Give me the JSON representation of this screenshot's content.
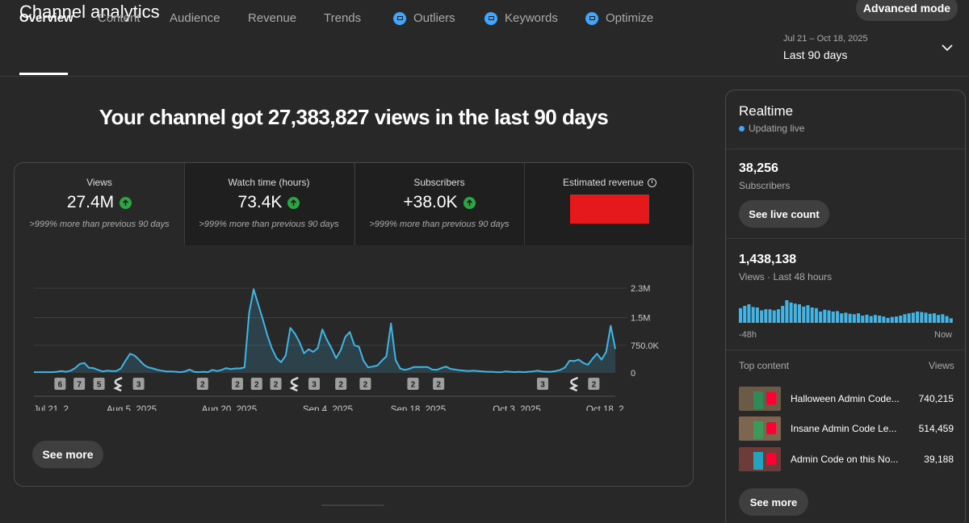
{
  "page": {
    "title": "Channel analytics",
    "advanced_mode": "Advanced mode",
    "headline": "Your channel got 27,383,827 views in the last 90 days"
  },
  "tabs": [
    {
      "label": "Overview",
      "active": true
    },
    {
      "label": "Content"
    },
    {
      "label": "Audience"
    },
    {
      "label": "Revenue"
    },
    {
      "label": "Trends"
    },
    {
      "label": "Outliers",
      "icon": "beta-badge-icon"
    },
    {
      "label": "Keywords",
      "icon": "beta-badge-icon"
    },
    {
      "label": "Optimize",
      "icon": "beta-badge-icon"
    }
  ],
  "date_range": {
    "dates": "Jul 21 – Oct 18, 2025",
    "label": "Last 90 days",
    "icon": "chevron-down-icon"
  },
  "metrics": [
    {
      "label": "Views",
      "value": "27.4M",
      "trend": "up",
      "delta": ">999% more than previous 90 days"
    },
    {
      "label": "Watch time (hours)",
      "value": "73.4K",
      "trend": "up",
      "delta": ">999% more than previous 90 days"
    },
    {
      "label": "Subscribers",
      "value": "+38.0K",
      "trend": "up",
      "delta": ">999% more than previous 90 days"
    },
    {
      "label": "Estimated revenue",
      "value_redacted": true
    }
  ],
  "chart_data": {
    "type": "area",
    "series": [
      {
        "values": [
          0.02,
          0.02,
          0.02,
          0.02,
          0.02,
          0.03,
          0.05,
          0.03,
          0.06,
          0.13,
          0.24,
          0.27,
          0.14,
          0.13,
          0.08,
          0.04,
          0.06,
          0.05,
          0.05,
          0.12,
          0.33,
          0.52,
          0.47,
          0.35,
          0.22,
          0.15,
          0.12,
          0.08,
          0.06,
          0.04,
          0.04,
          0.03,
          0.02,
          0.04,
          0.09,
          0.03,
          0.02,
          0.03,
          0.02,
          0.08,
          0.05,
          0.08,
          0.13,
          0.1,
          0.12,
          0.12,
          0.15,
          1.62,
          2.27,
          1.86,
          1.45,
          1.02,
          0.66,
          0.4,
          0.29,
          0.47,
          1.22,
          1.07,
          0.84,
          0.53,
          0.64,
          0.57,
          0.67,
          1.18,
          0.9,
          0.67,
          0.4,
          0.61,
          0.97,
          1.11,
          0.75,
          0.71,
          0.33,
          0.15,
          0.17,
          0.2,
          0.33,
          0.45,
          1.34,
          0.35,
          0.12,
          0.08,
          0.11,
          0.16,
          0.16,
          0.16,
          0.16,
          0.09,
          0.08,
          0.13,
          0.17,
          0.11,
          0.09,
          0.07,
          0.06,
          0.05,
          0.06,
          0.05,
          0.04,
          0.03,
          0.03,
          0.02,
          0.02,
          0.04,
          0.03,
          0.02,
          0.03,
          0.02,
          0.03,
          0.04,
          0.06,
          0.04,
          0.03,
          0.03,
          0.05,
          0.08,
          0.15,
          0.33,
          0.32,
          0.36,
          0.27,
          0.22,
          0.38,
          0.52,
          0.36,
          0.57,
          1.28,
          0.65
        ]
      }
    ],
    "x_tick_labels": [
      "Jul 21, 2...",
      "Aug 5, 2025",
      "Aug 20, 2025",
      "Sep 4, 2025",
      "Sep 18, 2025",
      "Oct 3, 2025",
      "Oct 18, 2..."
    ],
    "y_tick_labels": [
      "2.3M",
      "1.5M",
      "750.0K",
      "0"
    ],
    "ylim": [
      0,
      2.3
    ],
    "grid": true,
    "upload_markers": [
      {
        "label": "6",
        "at": 0.045
      },
      {
        "label": "7",
        "at": 0.078
      },
      {
        "label": "5",
        "at": 0.112
      },
      {
        "label": "short",
        "at": 0.146
      },
      {
        "label": "3",
        "at": 0.18
      },
      {
        "label": "2",
        "at": 0.29
      },
      {
        "label": "2",
        "at": 0.35
      },
      {
        "label": "2",
        "at": 0.383
      },
      {
        "label": "2",
        "at": 0.416
      },
      {
        "label": "short",
        "at": 0.449
      },
      {
        "label": "3",
        "at": 0.482
      },
      {
        "label": "2",
        "at": 0.528
      },
      {
        "label": "2",
        "at": 0.57
      },
      {
        "label": "2",
        "at": 0.652
      },
      {
        "label": "2",
        "at": 0.696
      },
      {
        "label": "3",
        "at": 0.875
      },
      {
        "label": "short",
        "at": 0.93
      },
      {
        "label": "2",
        "at": 0.963
      }
    ],
    "see_more": "See more"
  },
  "realtime": {
    "title": "Realtime",
    "status": "Updating live",
    "subscribers": {
      "value": "38,256",
      "label": "Subscribers"
    },
    "see_live_count": "See live count",
    "views": {
      "value": "1,438,138",
      "label": "Views · Last 48 hours"
    },
    "bars": [
      0.65,
      0.75,
      0.82,
      0.7,
      0.68,
      0.55,
      0.6,
      0.6,
      0.55,
      0.6,
      0.75,
      1.0,
      0.9,
      0.85,
      0.82,
      0.72,
      0.78,
      0.68,
      0.65,
      0.5,
      0.58,
      0.55,
      0.5,
      0.52,
      0.42,
      0.45,
      0.4,
      0.38,
      0.42,
      0.32,
      0.36,
      0.3,
      0.35,
      0.32,
      0.28,
      0.22,
      0.26,
      0.28,
      0.32,
      0.38,
      0.42,
      0.45,
      0.5,
      0.48,
      0.45,
      0.4,
      0.42,
      0.35,
      0.38,
      0.3,
      0.2
    ],
    "axis_start": "-48h",
    "axis_end": "Now",
    "top_content_label": "Top content",
    "views_col_label": "Views",
    "top_content": [
      {
        "title": "Halloween Admin Code...",
        "views": "740,215",
        "thumb_bg": "#6b5a46"
      },
      {
        "title": "Insane Admin Code Le...",
        "views": "514,459",
        "thumb_bg": "#7d6550"
      },
      {
        "title": "Admin Code on this No...",
        "views": "39,188",
        "thumb_bg": "#6e3b3b"
      }
    ],
    "see_more": "See more"
  },
  "colors": {
    "accent": "#3ea6ff",
    "line": "#41b6e6",
    "up": "#2ba640",
    "redact": "#e5181b"
  }
}
